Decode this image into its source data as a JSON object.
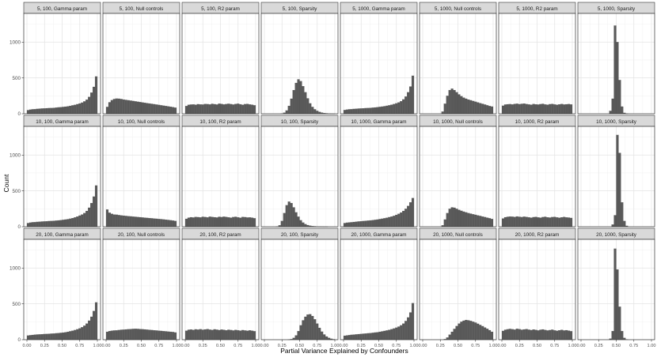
{
  "chart_data": {
    "type": "bar",
    "subtype": "faceted-histogram",
    "xlabel": "Partial Variance Explained by Confounders",
    "ylabel": "Count",
    "xlim": [
      0,
      1
    ],
    "ylim": [
      0,
      1400
    ],
    "x_ticks": [
      "0.00",
      "0.25",
      "0.50",
      "0.75",
      "1.00"
    ],
    "y_ticks": [
      "0",
      "500",
      "1000"
    ],
    "y_tick_values": [
      0,
      500,
      1000
    ],
    "x_tick_values": [
      0,
      0.25,
      0.5,
      0.75,
      1
    ],
    "bins": 30,
    "grid": true,
    "bar_color": "#595959",
    "strip_color": "#d9d9d9",
    "facets": [
      {
        "title": "5, 100, Gamma param",
        "values": [
          50,
          58,
          62,
          64,
          68,
          71,
          73,
          75,
          77,
          79,
          80,
          82,
          86,
          89,
          92,
          95,
          99,
          104,
          110,
          117,
          124,
          133,
          143,
          155,
          172,
          197,
          235,
          295,
          375,
          520
        ]
      },
      {
        "title": "5, 100, Null controls",
        "values": [
          95,
          160,
          190,
          205,
          212,
          210,
          205,
          198,
          193,
          188,
          183,
          178,
          173,
          168,
          163,
          158,
          153,
          148,
          143,
          138,
          133,
          128,
          123,
          118,
          113,
          108,
          103,
          98,
          92,
          85
        ]
      },
      {
        "title": "5, 100, R2 param",
        "values": [
          108,
          125,
          128,
          130,
          126,
          133,
          130,
          128,
          136,
          134,
          130,
          138,
          133,
          128,
          141,
          137,
          130,
          135,
          139,
          134,
          128,
          136,
          140,
          132,
          125,
          134,
          137,
          130,
          126,
          118
        ]
      },
      {
        "title": "5, 100, Sparsity",
        "values": [
          0,
          0,
          0,
          0,
          0,
          0,
          0,
          4,
          15,
          45,
          110,
          210,
          330,
          430,
          480,
          455,
          385,
          300,
          215,
          145,
          95,
          62,
          40,
          26,
          16,
          10,
          6,
          3,
          2,
          1
        ]
      },
      {
        "title": "5, 1000, Gamma param",
        "values": [
          52,
          58,
          62,
          64,
          67,
          70,
          72,
          74,
          76,
          78,
          80,
          82,
          85,
          88,
          92,
          96,
          100,
          105,
          111,
          118,
          126,
          135,
          145,
          158,
          175,
          200,
          240,
          300,
          380,
          530
        ]
      },
      {
        "title": "5, 1000, Null controls",
        "values": [
          0,
          0,
          0,
          0,
          0,
          0,
          0,
          0,
          30,
          140,
          250,
          330,
          350,
          330,
          300,
          270,
          245,
          225,
          210,
          198,
          188,
          178,
          168,
          158,
          148,
          138,
          128,
          118,
          108,
          100
        ]
      },
      {
        "title": "5, 1000, R2 param",
        "values": [
          112,
          128,
          132,
          134,
          130,
          137,
          140,
          133,
          138,
          142,
          135,
          130,
          126,
          136,
          131,
          128,
          134,
          138,
          130,
          126,
          133,
          137,
          130,
          125,
          131,
          136,
          129,
          132,
          135,
          130
        ]
      },
      {
        "title": "5, 1000, Sparsity",
        "values": [
          0,
          0,
          0,
          0,
          0,
          0,
          0,
          0,
          0,
          0,
          0,
          0,
          40,
          210,
          1230,
          1000,
          470,
          100,
          12,
          2,
          0,
          0,
          0,
          0,
          0,
          0,
          0,
          0,
          0,
          0
        ]
      },
      {
        "title": "10, 100, Gamma param",
        "values": [
          50,
          58,
          62,
          64,
          67,
          70,
          72,
          74,
          76,
          78,
          80,
          82,
          85,
          88,
          92,
          96,
          100,
          105,
          112,
          120,
          130,
          142,
          155,
          170,
          190,
          220,
          265,
          330,
          420,
          575
        ]
      },
      {
        "title": "10, 100, Null controls",
        "values": [
          240,
          195,
          180,
          170,
          168,
          162,
          158,
          154,
          150,
          147,
          144,
          141,
          138,
          135,
          132,
          129,
          126,
          123,
          120,
          117,
          114,
          111,
          108,
          105,
          102,
          98,
          94,
          90,
          86,
          80
        ]
      },
      {
        "title": "10, 100, R2 param",
        "values": [
          110,
          126,
          132,
          128,
          136,
          133,
          130,
          138,
          135,
          130,
          140,
          136,
          132,
          128,
          138,
          134,
          140,
          136,
          131,
          126,
          134,
          138,
          131,
          125,
          136,
          133,
          128,
          130,
          126,
          118
        ]
      },
      {
        "title": "10, 100, Sparsity",
        "values": [
          0,
          0,
          0,
          0,
          0,
          3,
          20,
          80,
          190,
          300,
          350,
          330,
          270,
          200,
          140,
          90,
          58,
          36,
          22,
          14,
          9,
          6,
          4,
          3,
          2,
          1,
          1,
          0,
          0,
          0
        ]
      },
      {
        "title": "10, 1000, Gamma param",
        "values": [
          50,
          56,
          60,
          62,
          66,
          70,
          73,
          76,
          79,
          82,
          85,
          88,
          92,
          96,
          100,
          106,
          112,
          118,
          125,
          133,
          142,
          152,
          165,
          180,
          198,
          220,
          250,
          290,
          340,
          400
        ]
      },
      {
        "title": "10, 1000, Null controls",
        "values": [
          0,
          0,
          0,
          0,
          0,
          0,
          0,
          0,
          20,
          100,
          190,
          250,
          270,
          265,
          250,
          235,
          222,
          210,
          200,
          190,
          182,
          174,
          166,
          158,
          150,
          142,
          134,
          126,
          118,
          108
        ]
      },
      {
        "title": "10, 1000, R2 param",
        "values": [
          115,
          132,
          138,
          142,
          140,
          136,
          143,
          138,
          134,
          140,
          136,
          131,
          126,
          133,
          137,
          130,
          126,
          134,
          138,
          131,
          127,
          134,
          137,
          130,
          125,
          131,
          136,
          130,
          127,
          122
        ]
      },
      {
        "title": "10, 1000, Sparsity",
        "values": [
          0,
          0,
          0,
          0,
          0,
          0,
          0,
          0,
          0,
          0,
          0,
          0,
          0,
          30,
          160,
          1280,
          1030,
          340,
          80,
          12,
          0,
          0,
          0,
          0,
          0,
          0,
          0,
          0,
          0,
          0
        ]
      },
      {
        "title": "20, 100, Gamma param",
        "values": [
          58,
          62,
          66,
          70,
          72,
          74,
          76,
          78,
          80,
          82,
          84,
          86,
          89,
          92,
          95,
          99,
          104,
          110,
          117,
          125,
          134,
          145,
          158,
          174,
          195,
          225,
          265,
          320,
          400,
          520
        ]
      },
      {
        "title": "20, 100, Null controls",
        "values": [
          110,
          120,
          125,
          128,
          130,
          134,
          138,
          140,
          143,
          146,
          148,
          150,
          152,
          150,
          148,
          146,
          143,
          140,
          137,
          134,
          131,
          128,
          125,
          122,
          119,
          116,
          113,
          110,
          107,
          100
        ]
      },
      {
        "title": "20, 100, R2 param",
        "values": [
          125,
          138,
          142,
          136,
          144,
          140,
          146,
          138,
          143,
          148,
          140,
          135,
          144,
          139,
          133,
          141,
          137,
          131,
          138,
          134,
          128,
          136,
          131,
          126,
          133,
          128,
          124,
          130,
          125,
          118
        ]
      },
      {
        "title": "20, 100, Sparsity",
        "values": [
          0,
          0,
          0,
          0,
          0,
          0,
          0,
          0,
          0,
          0,
          2,
          8,
          25,
          60,
          120,
          200,
          270,
          320,
          350,
          355,
          330,
          285,
          225,
          165,
          112,
          72,
          44,
          25,
          13,
          6
        ]
      },
      {
        "title": "20, 1000, Gamma param",
        "values": [
          55,
          60,
          64,
          68,
          71,
          74,
          77,
          80,
          83,
          86,
          89,
          92,
          96,
          100,
          104,
          110,
          116,
          122,
          129,
          137,
          146,
          156,
          168,
          182,
          200,
          225,
          260,
          310,
          380,
          510
        ]
      },
      {
        "title": "20, 1000, Null controls",
        "values": [
          0,
          0,
          0,
          0,
          0,
          0,
          0,
          0,
          0,
          8,
          30,
          70,
          110,
          150,
          190,
          225,
          250,
          265,
          275,
          270,
          262,
          250,
          238,
          222,
          205,
          188,
          170,
          152,
          132,
          110
        ]
      },
      {
        "title": "20, 1000, R2 param",
        "values": [
          122,
          138,
          145,
          150,
          146,
          140,
          152,
          147,
          138,
          143,
          148,
          139,
          133,
          142,
          136,
          129,
          138,
          143,
          135,
          128,
          133,
          139,
          130,
          124,
          131,
          137,
          128,
          132,
          126,
          118
        ]
      },
      {
        "title": "20, 1000, Sparsity",
        "values": [
          0,
          0,
          0,
          0,
          0,
          0,
          0,
          0,
          0,
          0,
          0,
          0,
          15,
          120,
          1270,
          980,
          460,
          120,
          25,
          4,
          0,
          0,
          0,
          0,
          0,
          0,
          0,
          0,
          0,
          0
        ]
      }
    ]
  }
}
